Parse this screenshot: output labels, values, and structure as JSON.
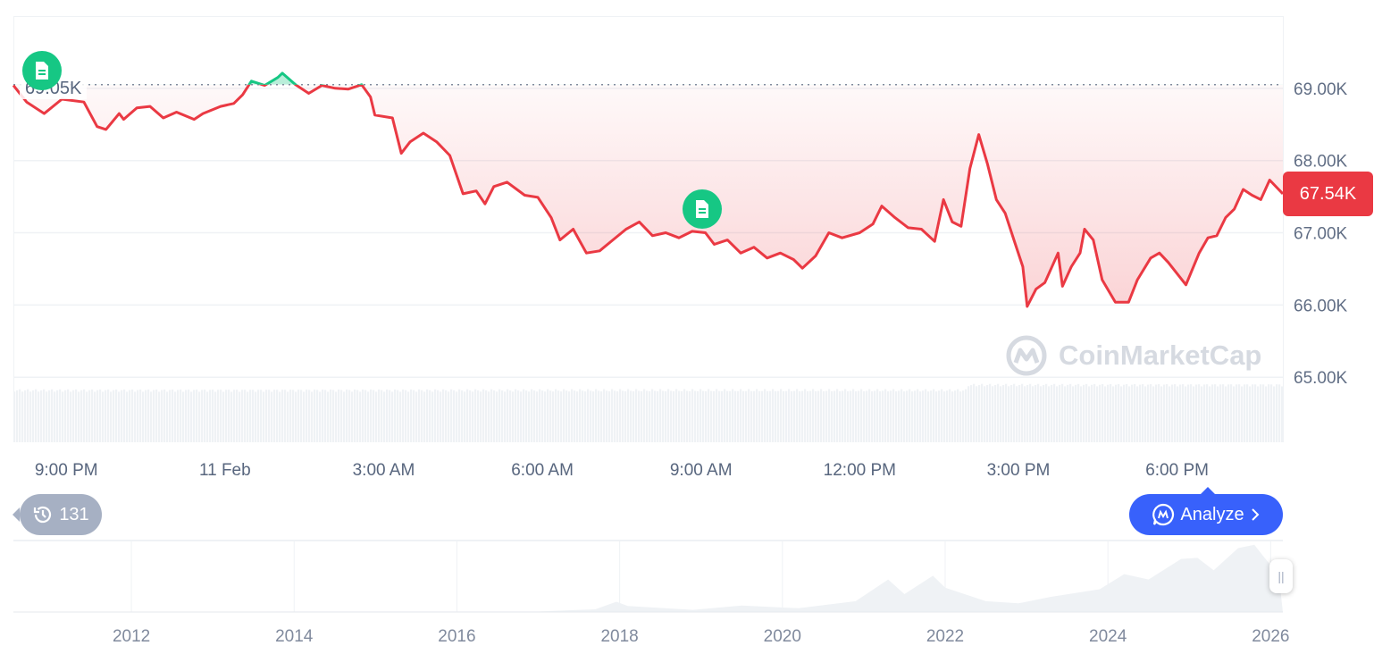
{
  "chart_data": [
    {
      "type": "line",
      "ylim": [
        64.1,
        70.0
      ],
      "xlim": [
        "Feb 10 20:00",
        "Feb 11 20:00"
      ],
      "y_unit": "K",
      "grid": true,
      "y_ticks": [
        "69.00K",
        "68.00K",
        "67.00K",
        "66.00K",
        "65.00K"
      ],
      "y_tick_values": [
        69,
        68,
        67,
        66,
        65
      ],
      "x_ticks": [
        "9:00 PM",
        "11 Feb",
        "3:00 AM",
        "6:00 AM",
        "9:00 AM",
        "12:00 PM",
        "3:00 PM",
        "6:00 PM"
      ],
      "x_tick_values": [
        "Feb 10 21:00",
        "Feb 11 00:00",
        "Feb 11 03:00",
        "Feb 11 06:00",
        "Feb 11 09:00",
        "Feb 11 12:00",
        "Feb 11 15:00",
        "Feb 11 18:00"
      ],
      "reference_line": {
        "value": 69.05,
        "label": "69.05K"
      },
      "current_price": {
        "value": 67.54,
        "label": "67.54K"
      },
      "colors": {
        "up": "#16C784",
        "down": "#EA3943",
        "volume": "#EFF2F5"
      },
      "x": [
        "Feb 10 20:00",
        "Feb 10 20:15",
        "Feb 10 20:35",
        "Feb 10 20:55",
        "Feb 10 21:20",
        "Feb 10 21:35",
        "Feb 10 21:45",
        "Feb 10 22:00",
        "Feb 10 22:05",
        "Feb 10 22:20",
        "Feb 10 22:35",
        "Feb 10 22:50",
        "Feb 10 23:05",
        "Feb 10 23:25",
        "Feb 10 23:35",
        "Feb 10 23:55",
        "Feb 11 00:10",
        "Feb 11 00:20",
        "Feb 11 00:30",
        "Feb 11 00:45",
        "Feb 11 01:00",
        "Feb 11 01:05",
        "Feb 11 01:20",
        "Feb 11 01:35",
        "Feb 11 01:50",
        "Feb 11 02:05",
        "Feb 11 02:20",
        "Feb 11 02:35",
        "Feb 11 02:45",
        "Feb 11 02:50",
        "Feb 11 03:10",
        "Feb 11 03:20",
        "Feb 11 03:30",
        "Feb 11 03:45",
        "Feb 11 04:00",
        "Feb 11 04:15",
        "Feb 11 04:30",
        "Feb 11 04:45",
        "Feb 11 04:55",
        "Feb 11 05:05",
        "Feb 11 05:20",
        "Feb 11 05:40",
        "Feb 11 05:55",
        "Feb 11 06:10",
        "Feb 11 06:20",
        "Feb 11 06:35",
        "Feb 11 06:50",
        "Feb 11 07:05",
        "Feb 11 07:20",
        "Feb 11 07:35",
        "Feb 11 07:50",
        "Feb 11 08:05",
        "Feb 11 08:20",
        "Feb 11 08:35",
        "Feb 11 08:50",
        "Feb 11 09:05",
        "Feb 11 09:15",
        "Feb 11 09:30",
        "Feb 11 09:45",
        "Feb 11 10:00",
        "Feb 11 10:15",
        "Feb 11 10:30",
        "Feb 11 10:45",
        "Feb 11 10:55",
        "Feb 11 11:10",
        "Feb 11 11:25",
        "Feb 11 11:40",
        "Feb 11 12:00",
        "Feb 11 12:15",
        "Feb 11 12:25",
        "Feb 11 12:40",
        "Feb 11 12:55",
        "Feb 11 13:10",
        "Feb 11 13:25",
        "Feb 11 13:35",
        "Feb 11 13:45",
        "Feb 11 13:55",
        "Feb 11 14:05",
        "Feb 11 14:15",
        "Feb 11 14:25",
        "Feb 11 14:35",
        "Feb 11 14:45",
        "Feb 11 14:55",
        "Feb 11 15:05",
        "Feb 11 15:10",
        "Feb 11 15:20",
        "Feb 11 15:30",
        "Feb 11 15:45",
        "Feb 11 15:50",
        "Feb 11 16:00",
        "Feb 11 16:10",
        "Feb 11 16:15",
        "Feb 11 16:25",
        "Feb 11 16:35",
        "Feb 11 16:50",
        "Feb 11 17:05",
        "Feb 11 17:15",
        "Feb 11 17:30",
        "Feb 11 17:40",
        "Feb 11 17:50",
        "Feb 11 18:10",
        "Feb 11 18:25",
        "Feb 11 18:35",
        "Feb 11 18:45",
        "Feb 11 18:55",
        "Feb 11 19:05",
        "Feb 11 19:15",
        "Feb 11 19:25",
        "Feb 11 19:35",
        "Feb 11 19:45",
        "Feb 11 20:00"
      ],
      "y": [
        69.04,
        68.81,
        68.65,
        68.85,
        68.81,
        68.47,
        68.43,
        68.65,
        68.57,
        68.73,
        68.75,
        68.59,
        68.67,
        68.57,
        68.65,
        68.75,
        68.79,
        68.91,
        69.1,
        69.04,
        69.15,
        69.21,
        69.05,
        68.93,
        69.04,
        69.0,
        68.99,
        69.05,
        68.88,
        68.63,
        68.59,
        68.1,
        68.26,
        68.38,
        68.26,
        68.07,
        67.54,
        67.58,
        67.4,
        67.64,
        67.7,
        67.52,
        67.49,
        67.21,
        66.9,
        67.05,
        66.72,
        66.75,
        66.9,
        67.05,
        67.15,
        66.96,
        67.0,
        66.93,
        67.02,
        67.0,
        66.84,
        66.9,
        66.72,
        66.8,
        66.65,
        66.72,
        66.63,
        66.51,
        66.68,
        67.0,
        66.93,
        67.0,
        67.12,
        67.37,
        67.21,
        67.07,
        67.05,
        66.88,
        67.46,
        67.15,
        67.09,
        67.89,
        68.36,
        67.95,
        67.46,
        67.27,
        66.9,
        66.53,
        65.98,
        66.22,
        66.31,
        66.72,
        66.26,
        66.53,
        66.72,
        67.05,
        66.9,
        66.35,
        66.04,
        66.04,
        66.35,
        66.65,
        66.72,
        66.59,
        66.28,
        66.72,
        66.93,
        66.96,
        67.21,
        67.33,
        67.6,
        67.52,
        67.46,
        67.73,
        67.54
      ]
    },
    {
      "type": "area",
      "x_ticks": [
        "2012",
        "2014",
        "2016",
        "2018",
        "2020",
        "2022",
        "2024",
        "2026"
      ],
      "x_tick_values": [
        2012,
        2014,
        2016,
        2018,
        2020,
        2022,
        2024,
        2026
      ],
      "xlim": [
        2010.55,
        2026.15
      ],
      "ylim": [
        0,
        132
      ],
      "y_unit": "K",
      "x": [
        2010.55,
        2013.9,
        2017.0,
        2017.7,
        2017.96,
        2018.1,
        2018.9,
        2019.5,
        2020.2,
        2020.9,
        2021.3,
        2021.5,
        2021.85,
        2022.0,
        2022.5,
        2022.9,
        2023.3,
        2023.9,
        2024.2,
        2024.5,
        2024.9,
        2025.1,
        2025.3,
        2025.6,
        2025.8,
        2025.9,
        2026.1
      ],
      "y": [
        0,
        1,
        1,
        5,
        19,
        11,
        4,
        12,
        7,
        20,
        60,
        33,
        67,
        45,
        20,
        16,
        28,
        42,
        70,
        60,
        98,
        100,
        77,
        118,
        124,
        105,
        68
      ]
    }
  ],
  "history_badge": {
    "count": "131",
    "icon": "history-clock-icon"
  },
  "analyze_button": {
    "label": "Analyze",
    "icon": "cmc-ai-icon",
    "chevron": "chevron-right-icon"
  },
  "news_markers": {
    "icon": "document-icon",
    "color": "#16C784"
  },
  "watermark": {
    "text": "CoinMarketCap"
  }
}
